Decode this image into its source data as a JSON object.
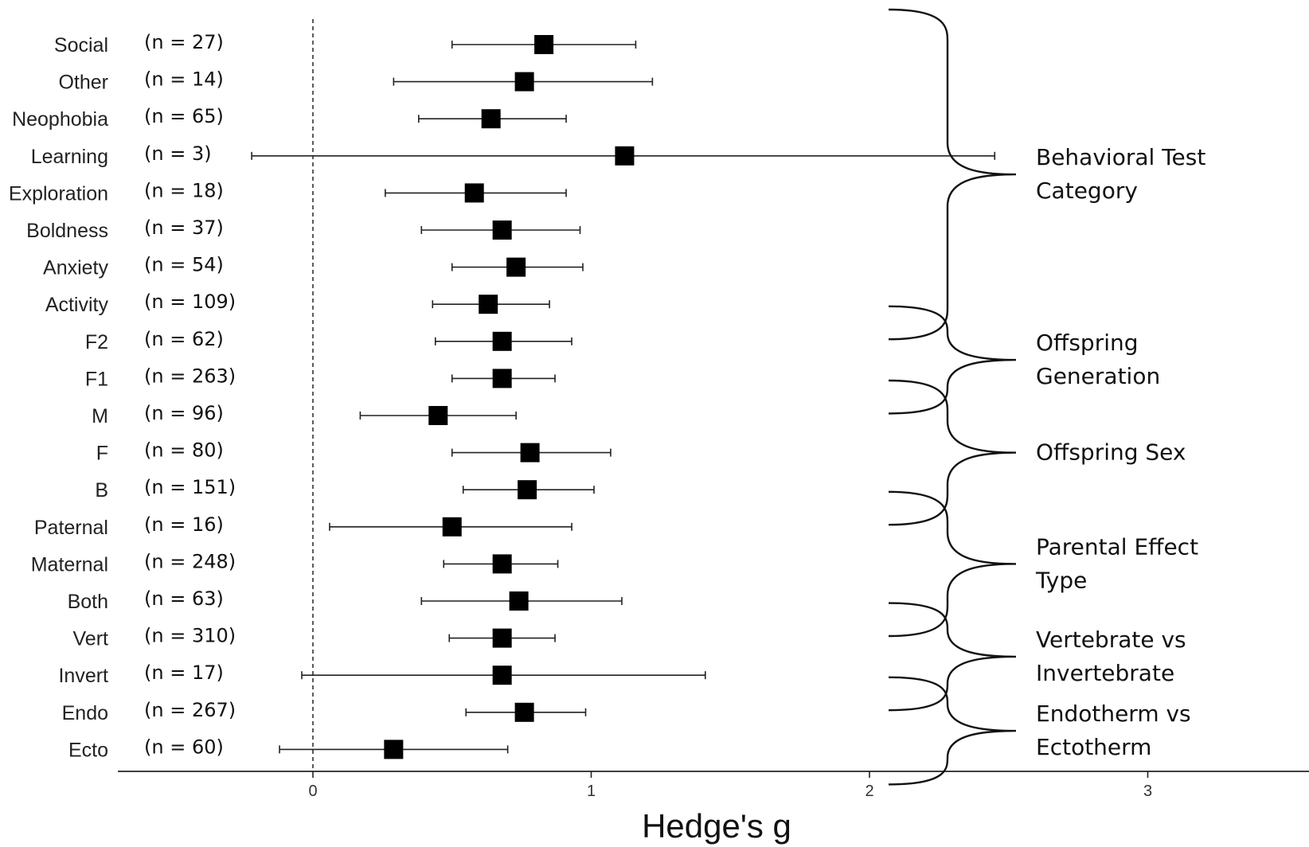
{
  "chart_data": {
    "type": "forest",
    "title": "",
    "xlabel": "Hedge's g",
    "xlim": [
      -0.7,
      3.6
    ],
    "xticks": [
      0,
      1,
      2,
      3
    ],
    "reference_line": 0,
    "rows": [
      {
        "label": "Social",
        "n": "(n = 27)",
        "est": 0.83,
        "lo": 0.5,
        "hi": 1.16
      },
      {
        "label": "Other",
        "n": "(n = 14)",
        "est": 0.76,
        "lo": 0.29,
        "hi": 1.22
      },
      {
        "label": "Neophobia",
        "n": "(n = 65)",
        "est": 0.64,
        "lo": 0.38,
        "hi": 0.91
      },
      {
        "label": "Learning",
        "n": "(n = 3)",
        "est": 1.12,
        "lo": -0.22,
        "hi": 2.45
      },
      {
        "label": "Exploration",
        "n": "(n = 18)",
        "est": 0.58,
        "lo": 0.26,
        "hi": 0.91
      },
      {
        "label": "Boldness",
        "n": "(n = 37)",
        "est": 0.68,
        "lo": 0.39,
        "hi": 0.96
      },
      {
        "label": "Anxiety",
        "n": "(n = 54)",
        "est": 0.73,
        "lo": 0.5,
        "hi": 0.97
      },
      {
        "label": "Activity",
        "n": "(n = 109)",
        "est": 0.63,
        "lo": 0.43,
        "hi": 0.85
      },
      {
        "label": "F2",
        "n": "(n = 62)",
        "est": 0.68,
        "lo": 0.44,
        "hi": 0.93
      },
      {
        "label": "F1",
        "n": "(n = 263)",
        "est": 0.68,
        "lo": 0.5,
        "hi": 0.87
      },
      {
        "label": "M",
        "n": "(n = 96)",
        "est": 0.45,
        "lo": 0.17,
        "hi": 0.73
      },
      {
        "label": "F",
        "n": "(n = 80)",
        "est": 0.78,
        "lo": 0.5,
        "hi": 1.07
      },
      {
        "label": "B",
        "n": "(n = 151)",
        "est": 0.77,
        "lo": 0.54,
        "hi": 1.01
      },
      {
        "label": "Paternal",
        "n": "(n = 16)",
        "est": 0.5,
        "lo": 0.06,
        "hi": 0.93
      },
      {
        "label": "Maternal",
        "n": "(n = 248)",
        "est": 0.68,
        "lo": 0.47,
        "hi": 0.88
      },
      {
        "label": "Both",
        "n": "(n = 63)",
        "est": 0.74,
        "lo": 0.39,
        "hi": 1.11
      },
      {
        "label": "Vert",
        "n": "(n = 310)",
        "est": 0.68,
        "lo": 0.49,
        "hi": 0.87
      },
      {
        "label": "Invert",
        "n": "(n = 17)",
        "est": 0.68,
        "lo": -0.04,
        "hi": 1.41
      },
      {
        "label": "Endo",
        "n": "(n = 267)",
        "est": 0.76,
        "lo": 0.55,
        "hi": 0.98
      },
      {
        "label": "Ecto",
        "n": "(n = 60)",
        "est": 0.29,
        "lo": -0.12,
        "hi": 0.7
      }
    ],
    "groups": [
      {
        "lines": [
          "Behavioral Test",
          "Category"
        ],
        "from": 0,
        "to": 7
      },
      {
        "lines": [
          "Offspring",
          "Generation"
        ],
        "from": 8,
        "to": 9
      },
      {
        "lines": [
          "Offspring Sex"
        ],
        "from": 10,
        "to": 12
      },
      {
        "lines": [
          "Parental Effect",
          "Type"
        ],
        "from": 13,
        "to": 15
      },
      {
        "lines": [
          "Vertebrate vs",
          "Invertebrate"
        ],
        "from": 16,
        "to": 17
      },
      {
        "lines": [
          "Endotherm vs",
          "Ectotherm"
        ],
        "from": 18,
        "to": 19
      }
    ]
  }
}
